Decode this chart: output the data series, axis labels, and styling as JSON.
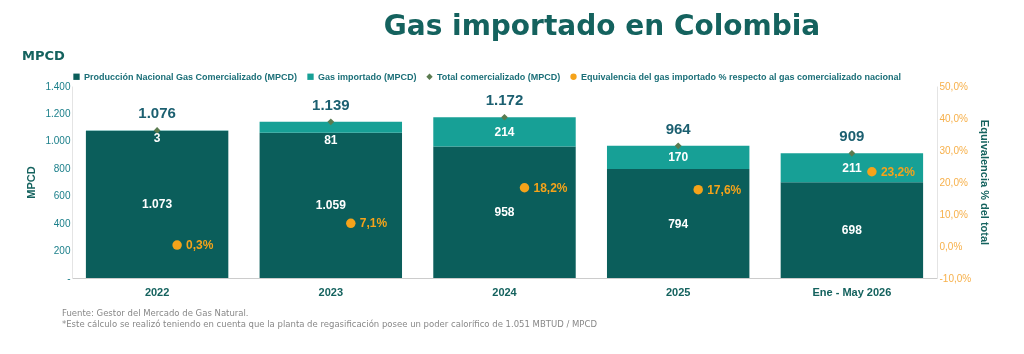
{
  "chart_data": {
    "type": "bar",
    "title": "Gas importado en Colombia",
    "subtitle": "MPCD",
    "ylabel": "MPCD",
    "y2label": "Equivalencia % del total",
    "categories": [
      "2022",
      "2023",
      "2024",
      "2025",
      "Ene - May 2026"
    ],
    "stacked": true,
    "legend": "top",
    "grid": false,
    "ylim": [
      0,
      1400
    ],
    "yticks": [
      {
        "value": 0,
        "label": "-"
      },
      200,
      400,
      600,
      800,
      {
        "value": 1000,
        "label": "1.000"
      },
      {
        "value": 1200,
        "label": "1.200"
      },
      {
        "value": 1400,
        "label": "1.400"
      }
    ],
    "y2lim": [
      -10,
      50
    ],
    "y2ticks": [
      {
        "value": -10,
        "label": "-10,0%"
      },
      {
        "value": 0,
        "label": "0,0%"
      },
      {
        "value": 10,
        "label": "10,0%"
      },
      {
        "value": 20,
        "label": "20,0%"
      },
      {
        "value": 30,
        "label": "30,0%"
      },
      {
        "value": 40,
        "label": "40,0%"
      },
      {
        "value": 50,
        "label": "50,0%"
      }
    ],
    "series": [
      {
        "name": "Producción Nacional Gas Comercializado (MPCD)",
        "color": "#0b5e5b",
        "values": [
          1073,
          1059,
          958,
          794,
          698
        ],
        "value_labels": [
          "1.073",
          "1.059",
          "958",
          "794",
          "698"
        ]
      },
      {
        "name": "Gas importado (MPCD)",
        "color": "#17a096",
        "values": [
          3,
          81,
          214,
          170,
          211
        ],
        "value_labels": [
          "3",
          "81",
          "214",
          "170",
          "211"
        ]
      },
      {
        "name": "Total comercializado (MPCD)",
        "type": "scatter",
        "marker": "diamond",
        "color": "#5b7b50",
        "values": [
          1076,
          1139,
          1172,
          964,
          909
        ],
        "value_labels": [
          "1.076",
          "1.139",
          "1.172",
          "964",
          "909"
        ]
      },
      {
        "name": "Equivalencia del gas importado % respecto al gas comercializado nacional",
        "type": "scatter",
        "marker": "circle",
        "axis": "y2",
        "color": "#f5a31a",
        "values": [
          0.3,
          7.1,
          18.2,
          17.6,
          23.2
        ],
        "value_labels": [
          "0,3%",
          "7,1%",
          "18,2%",
          "17,6%",
          "23,2%"
        ]
      }
    ],
    "annotations": [
      "Fuente: Gestor del Mercado de Gas Natural.",
      "*Este cálculo se realizó teniendo en cuenta que la planta de regasificación posee un poder calorífico de 1.051 MBTUD / MPCD"
    ]
  }
}
